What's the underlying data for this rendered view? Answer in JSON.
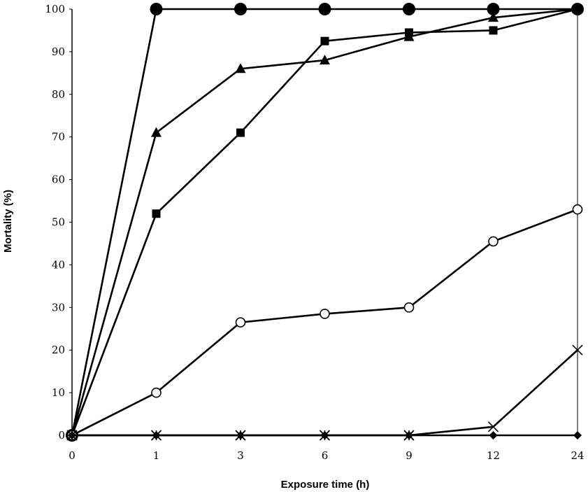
{
  "chart_data": {
    "type": "line",
    "title": "",
    "xlabel": "Exposure time (h)",
    "ylabel": "Mortality (%)",
    "categories": [
      "0",
      "1",
      "3",
      "6",
      "9",
      "12",
      "24"
    ],
    "ylim": [
      0,
      100
    ],
    "yticks": [
      0,
      10,
      20,
      30,
      40,
      50,
      60,
      70,
      80,
      90,
      100
    ],
    "grid": false,
    "legend": "none",
    "series": [
      {
        "marker": "filled-circle",
        "values": [
          0,
          100,
          100,
          100,
          100,
          100,
          100
        ]
      },
      {
        "marker": "filled-triangle",
        "values": [
          0,
          71,
          86,
          88,
          93.5,
          98,
          100
        ]
      },
      {
        "marker": "filled-square",
        "values": [
          0,
          52,
          71,
          92.5,
          94.5,
          95,
          100
        ]
      },
      {
        "marker": "open-circle",
        "values": [
          0,
          10,
          26.5,
          28.5,
          30,
          45.5,
          53
        ]
      },
      {
        "marker": "cross",
        "values": [
          0,
          0,
          0,
          0,
          0,
          2,
          20
        ]
      },
      {
        "marker": "asterisk",
        "values": [
          0,
          0,
          0,
          0,
          0,
          null,
          null
        ]
      },
      {
        "marker": "filled-diamond",
        "values": [
          0,
          0,
          0,
          0,
          0,
          0,
          0
        ]
      }
    ],
    "colors": {
      "line": "#000000",
      "open_fill": "#ffffff"
    }
  }
}
